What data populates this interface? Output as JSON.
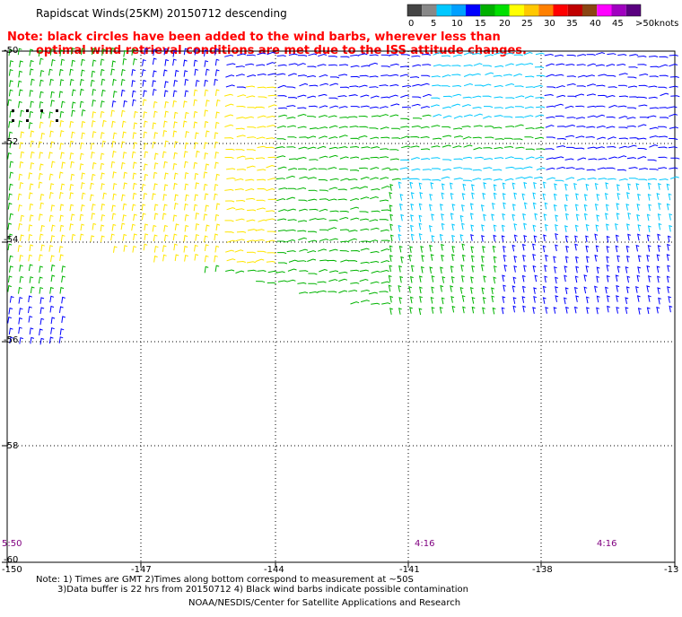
{
  "title": "Rapidscat Winds(25KM) 20150712 descending",
  "note": {
    "line1": "Note: black circles have been added to the wind barbs, wherever less than",
    "line2": "optimal wind retrieval conditions are met due to the ISS attitude changes."
  },
  "legend": {
    "labels": [
      "0",
      "5",
      "10",
      "15",
      "20",
      "25",
      "30",
      "35",
      "40",
      "45",
      ">50"
    ],
    "units": "knots",
    "colors": [
      "#444444",
      "#888888",
      "#00c8ff",
      "#00a0ff",
      "#0000ff",
      "#00b000",
      "#00e000",
      "#ffff00",
      "#ffc800",
      "#ff8000",
      "#ff0000",
      "#c00000",
      "#8b4513",
      "#ff00ff",
      "#a000c0",
      "#5a0080"
    ]
  },
  "map": {
    "lon_ticks": [
      "-150",
      "-147",
      "-144",
      "-141",
      "-138",
      "-13"
    ],
    "lat_ticks": [
      "-50",
      "-52",
      "-54",
      "-56",
      "-58",
      "-60"
    ],
    "time_labels": [
      "5:50",
      "4:16",
      "4:16"
    ]
  },
  "footnotes": {
    "line1": "Note: 1) Times are GMT 2)Times along bottom correspond to measurement at ~50S",
    "line2": "3)Data buffer is 22 hrs from 20150712 4) Black wind barbs indicate possible contamination"
  },
  "credit": "NOAA/NESDIS/Center for Satellite Applications and Research"
}
